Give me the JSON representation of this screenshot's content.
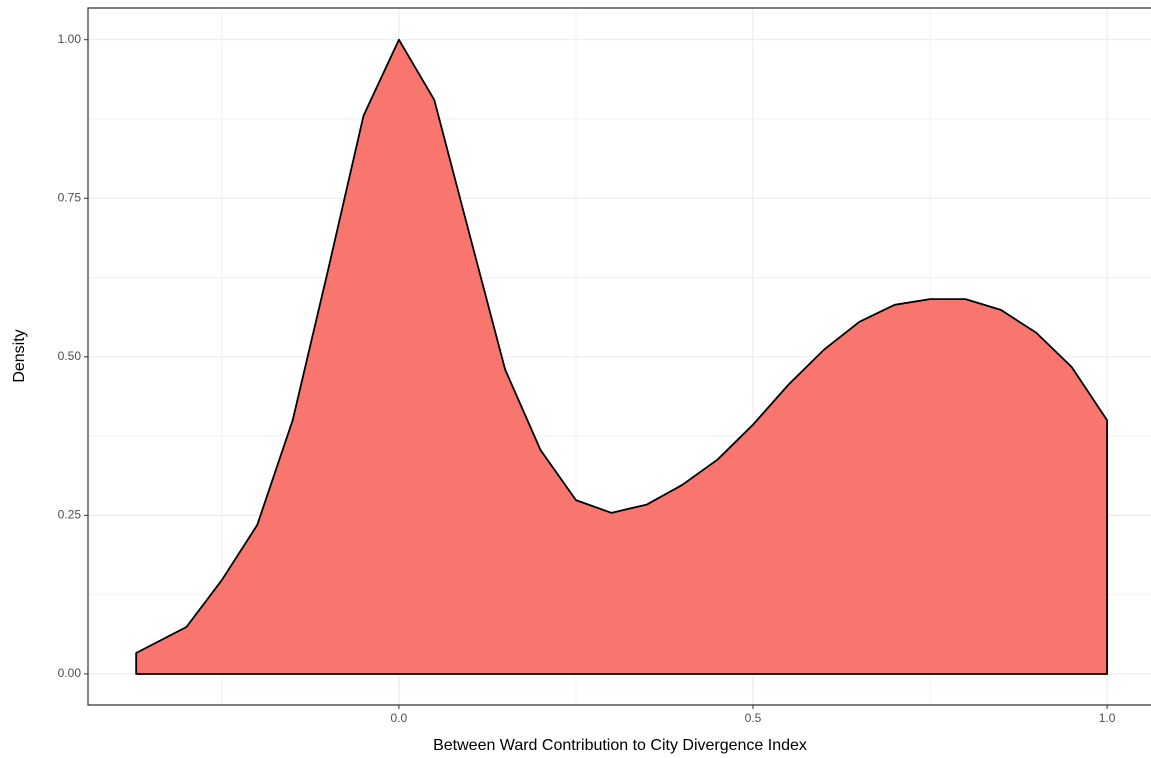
{
  "chart_data": {
    "type": "area",
    "x_label": "Between Ward Contribution to City Divergence Index",
    "y_label": "Density",
    "color": "#f8766d",
    "x": [
      -0.371,
      -0.3,
      -0.25,
      -0.2,
      -0.15,
      -0.1,
      -0.05,
      0,
      0.05,
      0.1,
      0.15,
      0.2,
      0.25,
      0.3,
      0.35,
      0.4,
      0.45,
      0.5,
      0.55,
      0.6,
      0.65,
      0.7,
      0.75,
      0.8,
      0.85,
      0.9,
      0.95,
      1.0
    ],
    "values": [
      0.033,
      0.074,
      0.148,
      0.235,
      0.4,
      0.637,
      0.88,
      1.0,
      0.905,
      0.692,
      0.48,
      0.353,
      0.274,
      0.254,
      0.267,
      0.298,
      0.338,
      0.393,
      0.456,
      0.511,
      0.555,
      0.582,
      0.591,
      0.591,
      0.574,
      0.538,
      0.484,
      0.4
    ],
    "xlim": [
      -0.439,
      1.062
    ],
    "ylim": [
      -0.049,
      1.05
    ],
    "xticks": [
      {
        "value": 0,
        "label": "0.0"
      },
      {
        "value": 0.5,
        "label": "0.5"
      },
      {
        "value": 1,
        "label": "1.0"
      }
    ],
    "yticks": [
      {
        "value": 0,
        "label": "0.00"
      },
      {
        "value": 0.25,
        "label": "0.25"
      },
      {
        "value": 0.5,
        "label": "0.50"
      },
      {
        "value": 0.75,
        "label": "0.75"
      },
      {
        "value": 1,
        "label": "1.00"
      }
    ],
    "grid": true
  }
}
